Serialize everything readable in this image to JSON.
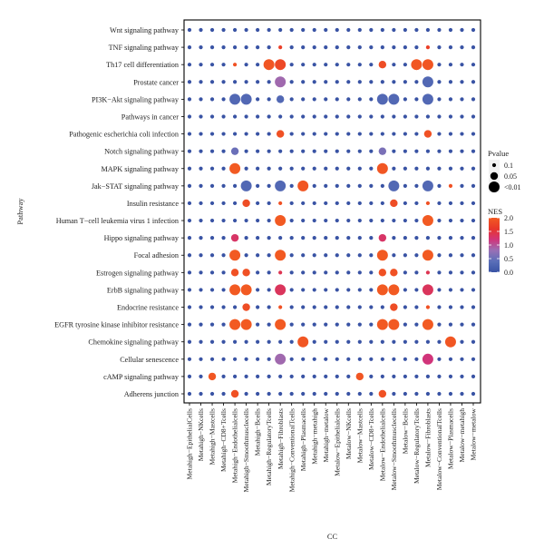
{
  "chart_data": {
    "type": "dotplot",
    "xlabel": "CC",
    "ylabel": "Pathway",
    "rows": [
      "Wnt signaling pathway",
      "TNF signaling pathway",
      "Th17 cell differentiation",
      "Prostate cancer",
      "PI3K−Akt signaling pathway",
      "Pathways in cancer",
      "Pathogenic escherichia coli infection",
      "Notch signaling pathway",
      "MAPK signaling pathway",
      "Jak−STAT signaling pathway",
      "Insulin resistance",
      "Human T−cell leukemia virus 1 infection",
      "Hippo signaling pathway",
      "Focal adhesion",
      "Estrogen signaling pathway",
      "ErbB signaling pathway",
      "Endocrine resistance",
      "EGFR tyrosine kinase inhibitor resistance",
      "Chemokine signaling pathway",
      "Cellular senescence",
      "cAMP signaling pathway",
      "Adherens junction"
    ],
    "columns": [
      "Metahigh−EpithelialCells",
      "Metahigh−NKcells",
      "Metahigh−Mastcells",
      "Metahigh−CD8+Tcells",
      "Metahigh−Endothelialcells",
      "Metahigh−Smoothmusclecells",
      "Metahigh−Bcells",
      "Metahigh−RegulatoryTcells",
      "Metahigh−Fibroblasts",
      "Metahigh−ConventionalTcells",
      "Metahigh−Plasmacells",
      "Metahigh−metahigh",
      "Metahigh−metalow",
      "Metalow−Epithelialcells",
      "Metalow−NKcells",
      "Metalow−Mastcells",
      "Metalow−CD8+Tcells",
      "Metalow−Endothelialcells",
      "Metalow−Smoothmusclecells",
      "Metalow−Bcells",
      "Metalow−RegulatoryTcells",
      "Metalow−Fibroblasts",
      "Metalow−ConventionalTcells",
      "Metalow−Plasmacells",
      "Metalow−metahigh",
      "Metalow−metalow"
    ],
    "default_point": {
      "pvalue": 0.1,
      "nes": 0.0
    },
    "points": [
      {
        "row": 2,
        "col": 4,
        "pvalue": 0.1,
        "nes": 1.9
      },
      {
        "row": 2,
        "col": 7,
        "pvalue": 0.01,
        "nes": 1.95
      },
      {
        "row": 2,
        "col": 8,
        "pvalue": 0.01,
        "nes": 1.8
      },
      {
        "row": 2,
        "col": 17,
        "pvalue": 0.05,
        "nes": 1.85
      },
      {
        "row": 2,
        "col": 20,
        "pvalue": 0.01,
        "nes": 1.95
      },
      {
        "row": 2,
        "col": 21,
        "pvalue": 0.01,
        "nes": 1.95
      },
      {
        "row": 1,
        "col": 8,
        "pvalue": 0.1,
        "nes": 1.7
      },
      {
        "row": 1,
        "col": 21,
        "pvalue": 0.1,
        "nes": 1.7
      },
      {
        "row": 3,
        "col": 8,
        "pvalue": 0.01,
        "nes": 0.85
      },
      {
        "row": 3,
        "col": 21,
        "pvalue": 0.01,
        "nes": 0.3
      },
      {
        "row": 4,
        "col": 4,
        "pvalue": 0.01,
        "nes": 0.3
      },
      {
        "row": 4,
        "col": 5,
        "pvalue": 0.01,
        "nes": 0.3
      },
      {
        "row": 4,
        "col": 8,
        "pvalue": 0.05,
        "nes": 0.3
      },
      {
        "row": 4,
        "col": 17,
        "pvalue": 0.01,
        "nes": 0.3
      },
      {
        "row": 4,
        "col": 18,
        "pvalue": 0.01,
        "nes": 0.3
      },
      {
        "row": 4,
        "col": 21,
        "pvalue": 0.01,
        "nes": 0.3
      },
      {
        "row": 6,
        "col": 8,
        "pvalue": 0.05,
        "nes": 1.9
      },
      {
        "row": 6,
        "col": 21,
        "pvalue": 0.05,
        "nes": 1.9
      },
      {
        "row": 7,
        "col": 4,
        "pvalue": 0.05,
        "nes": 0.5
      },
      {
        "row": 7,
        "col": 17,
        "pvalue": 0.05,
        "nes": 0.6
      },
      {
        "row": 8,
        "col": 4,
        "pvalue": 0.01,
        "nes": 2.0
      },
      {
        "row": 8,
        "col": 17,
        "pvalue": 0.01,
        "nes": 1.95
      },
      {
        "row": 9,
        "col": 5,
        "pvalue": 0.01,
        "nes": 0.3
      },
      {
        "row": 9,
        "col": 8,
        "pvalue": 0.01,
        "nes": 0.3
      },
      {
        "row": 9,
        "col": 10,
        "pvalue": 0.01,
        "nes": 1.95
      },
      {
        "row": 9,
        "col": 18,
        "pvalue": 0.01,
        "nes": 0.3
      },
      {
        "row": 9,
        "col": 21,
        "pvalue": 0.01,
        "nes": 0.3
      },
      {
        "row": 9,
        "col": 23,
        "pvalue": 0.1,
        "nes": 1.9
      },
      {
        "row": 10,
        "col": 5,
        "pvalue": 0.05,
        "nes": 1.85
      },
      {
        "row": 10,
        "col": 8,
        "pvalue": 0.1,
        "nes": 1.9
      },
      {
        "row": 10,
        "col": 18,
        "pvalue": 0.05,
        "nes": 1.85
      },
      {
        "row": 10,
        "col": 21,
        "pvalue": 0.1,
        "nes": 1.9
      },
      {
        "row": 11,
        "col": 8,
        "pvalue": 0.01,
        "nes": 2.0
      },
      {
        "row": 11,
        "col": 21,
        "pvalue": 0.01,
        "nes": 2.0
      },
      {
        "row": 12,
        "col": 4,
        "pvalue": 0.05,
        "nes": 1.3
      },
      {
        "row": 12,
        "col": 17,
        "pvalue": 0.05,
        "nes": 1.3
      },
      {
        "row": 13,
        "col": 4,
        "pvalue": 0.01,
        "nes": 2.0
      },
      {
        "row": 13,
        "col": 8,
        "pvalue": 0.01,
        "nes": 2.0
      },
      {
        "row": 13,
        "col": 17,
        "pvalue": 0.01,
        "nes": 2.0
      },
      {
        "row": 13,
        "col": 21,
        "pvalue": 0.01,
        "nes": 2.0
      },
      {
        "row": 14,
        "col": 4,
        "pvalue": 0.05,
        "nes": 1.9
      },
      {
        "row": 14,
        "col": 5,
        "pvalue": 0.05,
        "nes": 1.9
      },
      {
        "row": 14,
        "col": 8,
        "pvalue": 0.1,
        "nes": 1.4
      },
      {
        "row": 14,
        "col": 17,
        "pvalue": 0.05,
        "nes": 1.9
      },
      {
        "row": 14,
        "col": 18,
        "pvalue": 0.05,
        "nes": 1.9
      },
      {
        "row": 14,
        "col": 21,
        "pvalue": 0.1,
        "nes": 1.4
      },
      {
        "row": 15,
        "col": 4,
        "pvalue": 0.01,
        "nes": 2.0
      },
      {
        "row": 15,
        "col": 5,
        "pvalue": 0.01,
        "nes": 2.0
      },
      {
        "row": 15,
        "col": 8,
        "pvalue": 0.01,
        "nes": 1.35
      },
      {
        "row": 15,
        "col": 17,
        "pvalue": 0.01,
        "nes": 2.0
      },
      {
        "row": 15,
        "col": 18,
        "pvalue": 0.01,
        "nes": 2.0
      },
      {
        "row": 15,
        "col": 21,
        "pvalue": 0.01,
        "nes": 1.35
      },
      {
        "row": 16,
        "col": 5,
        "pvalue": 0.05,
        "nes": 1.85
      },
      {
        "row": 16,
        "col": 8,
        "pvalue": 0.1,
        "nes": 1.9
      },
      {
        "row": 16,
        "col": 18,
        "pvalue": 0.05,
        "nes": 1.85
      },
      {
        "row": 16,
        "col": 21,
        "pvalue": 0.1,
        "nes": 1.9
      },
      {
        "row": 17,
        "col": 4,
        "pvalue": 0.01,
        "nes": 2.0
      },
      {
        "row": 17,
        "col": 5,
        "pvalue": 0.01,
        "nes": 2.0
      },
      {
        "row": 17,
        "col": 8,
        "pvalue": 0.01,
        "nes": 2.0
      },
      {
        "row": 17,
        "col": 17,
        "pvalue": 0.01,
        "nes": 2.0
      },
      {
        "row": 17,
        "col": 18,
        "pvalue": 0.01,
        "nes": 2.0
      },
      {
        "row": 17,
        "col": 21,
        "pvalue": 0.01,
        "nes": 2.0
      },
      {
        "row": 18,
        "col": 10,
        "pvalue": 0.01,
        "nes": 1.95
      },
      {
        "row": 18,
        "col": 23,
        "pvalue": 0.01,
        "nes": 1.95
      },
      {
        "row": 19,
        "col": 8,
        "pvalue": 0.01,
        "nes": 0.85
      },
      {
        "row": 19,
        "col": 21,
        "pvalue": 0.01,
        "nes": 1.2
      },
      {
        "row": 20,
        "col": 2,
        "pvalue": 0.05,
        "nes": 1.95
      },
      {
        "row": 20,
        "col": 15,
        "pvalue": 0.05,
        "nes": 1.95
      },
      {
        "row": 21,
        "col": 4,
        "pvalue": 0.05,
        "nes": 1.9
      },
      {
        "row": 21,
        "col": 17,
        "pvalue": 0.05,
        "nes": 1.9
      }
    ],
    "legend_pvalue": {
      "title": "Pvalue",
      "labels": [
        "0.1",
        "0.05",
        "<0.01"
      ],
      "values": [
        0.1,
        0.05,
        0.01
      ]
    },
    "legend_nes": {
      "title": "NES",
      "ticks": [
        "2.0",
        "1.5",
        "1.0",
        "0.5",
        "0.0"
      ],
      "range": [
        0,
        2
      ],
      "colors": [
        "#3953a4",
        "#5a6fb9",
        "#9970b5",
        "#d1347a",
        "#e8362a",
        "#f25a22"
      ]
    },
    "legend_position": "right"
  }
}
